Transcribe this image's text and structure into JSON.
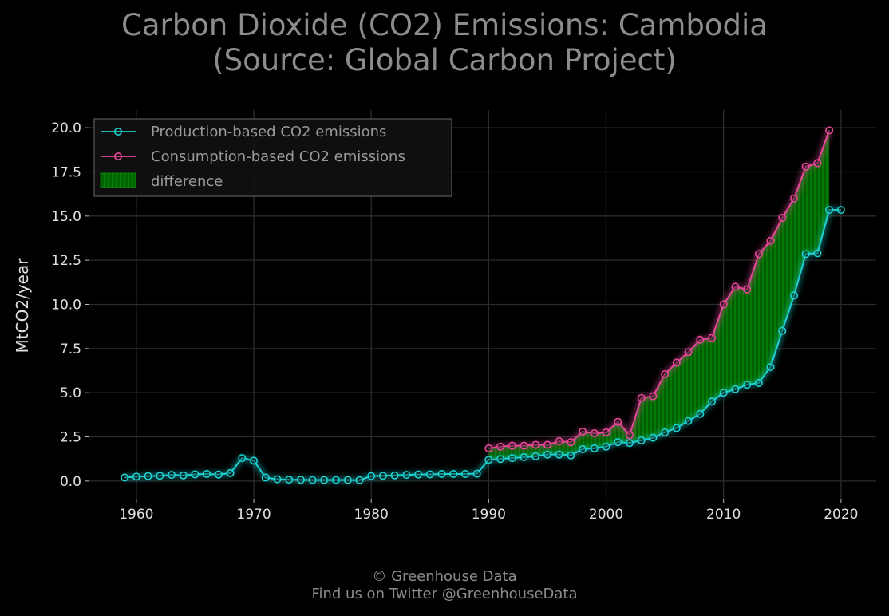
{
  "chart_data": {
    "type": "line",
    "title_line1": "Carbon Dioxide (CO2) Emissions: Cambodia",
    "title_line2": "(Source: Global Carbon Project)",
    "ylabel": "MtCO2/year",
    "xlim": [
      1956,
      2023
    ],
    "ylim": [
      -1.0,
      21.0
    ],
    "x_ticks": [
      1960,
      1970,
      1980,
      1990,
      2000,
      2010,
      2020
    ],
    "y_ticks": [
      0.0,
      2.5,
      5.0,
      7.5,
      10.0,
      12.5,
      15.0,
      17.5,
      20.0
    ],
    "y_tick_labels": [
      "0.0",
      "2.5",
      "5.0",
      "7.5",
      "10.0",
      "12.5",
      "15.0",
      "17.5",
      "20.0"
    ],
    "grid": true,
    "legend_placement": "top-left",
    "legend": {
      "production": "Production-based CO2 emissions",
      "consumption": "Consumption-based CO2 emissions",
      "difference": "difference"
    },
    "colors": {
      "production": "#1fd2d2",
      "consumption": "#e8489a",
      "difference": "#007a00"
    },
    "series": [
      {
        "name": "Production-based CO2 emissions",
        "x": [
          1959,
          1960,
          1961,
          1962,
          1963,
          1964,
          1965,
          1966,
          1967,
          1968,
          1969,
          1970,
          1971,
          1972,
          1973,
          1974,
          1975,
          1976,
          1977,
          1978,
          1979,
          1980,
          1981,
          1982,
          1983,
          1984,
          1985,
          1986,
          1987,
          1988,
          1989,
          1990,
          1991,
          1992,
          1993,
          1994,
          1995,
          1996,
          1997,
          1998,
          1999,
          2000,
          2001,
          2002,
          2003,
          2004,
          2005,
          2006,
          2007,
          2008,
          2009,
          2010,
          2011,
          2012,
          2013,
          2014,
          2015,
          2016,
          2017,
          2018,
          2019,
          2020
        ],
        "values": [
          0.2,
          0.25,
          0.28,
          0.3,
          0.35,
          0.32,
          0.38,
          0.4,
          0.37,
          0.45,
          1.3,
          1.15,
          0.2,
          0.1,
          0.08,
          0.07,
          0.06,
          0.06,
          0.06,
          0.06,
          0.05,
          0.28,
          0.3,
          0.32,
          0.35,
          0.37,
          0.38,
          0.4,
          0.4,
          0.4,
          0.42,
          1.2,
          1.25,
          1.3,
          1.35,
          1.4,
          1.5,
          1.5,
          1.45,
          1.8,
          1.85,
          1.95,
          2.2,
          2.15,
          2.3,
          2.45,
          2.75,
          3.0,
          3.4,
          3.8,
          4.5,
          5.0,
          5.2,
          5.45,
          5.55,
          6.45,
          8.5,
          10.5,
          12.85,
          12.9,
          15.35,
          15.35
        ]
      },
      {
        "name": "Consumption-based CO2 emissions",
        "x": [
          1990,
          1991,
          1992,
          1993,
          1994,
          1995,
          1996,
          1997,
          1998,
          1999,
          2000,
          2001,
          2002,
          2003,
          2004,
          2005,
          2006,
          2007,
          2008,
          2009,
          2010,
          2011,
          2012,
          2013,
          2014,
          2015,
          2016,
          2017,
          2018,
          2019
        ],
        "values": [
          1.85,
          1.95,
          2.0,
          2.0,
          2.05,
          2.05,
          2.25,
          2.2,
          2.8,
          2.7,
          2.75,
          3.35,
          2.6,
          4.7,
          4.8,
          6.05,
          6.7,
          7.3,
          8.0,
          8.1,
          10.0,
          11.0,
          10.85,
          12.85,
          13.6,
          14.9,
          16.0,
          17.8,
          18.0,
          19.85
        ]
      }
    ]
  },
  "footer": {
    "line1": "© Greenhouse Data",
    "line2": "Find us on Twitter @GreenhouseData"
  }
}
